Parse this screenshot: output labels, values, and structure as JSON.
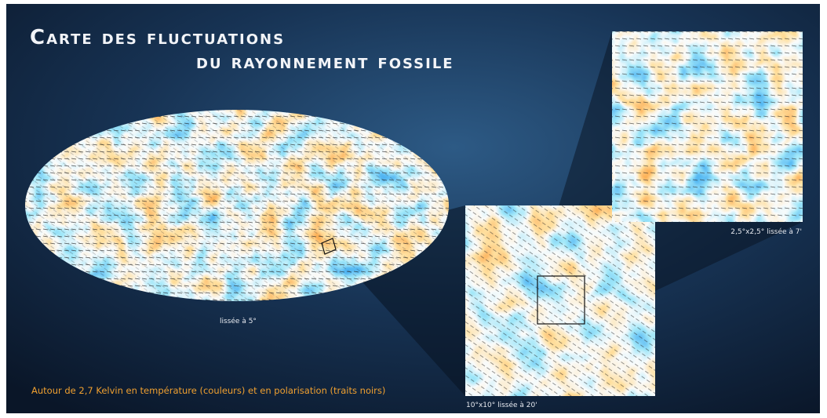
{
  "title": {
    "line1": "Carte des fluctuations",
    "line2": "du rayonnement fossile"
  },
  "captions": {
    "full_sky": "lissée à 5°",
    "zoom_small": "2,5°x2,5°  lissée à 7'",
    "zoom_medium": "10°x10°  lissée à 20'"
  },
  "footnote": "Autour de 2,7 Kelvin en température (couleurs) et en polarisation (traits noirs)"
}
